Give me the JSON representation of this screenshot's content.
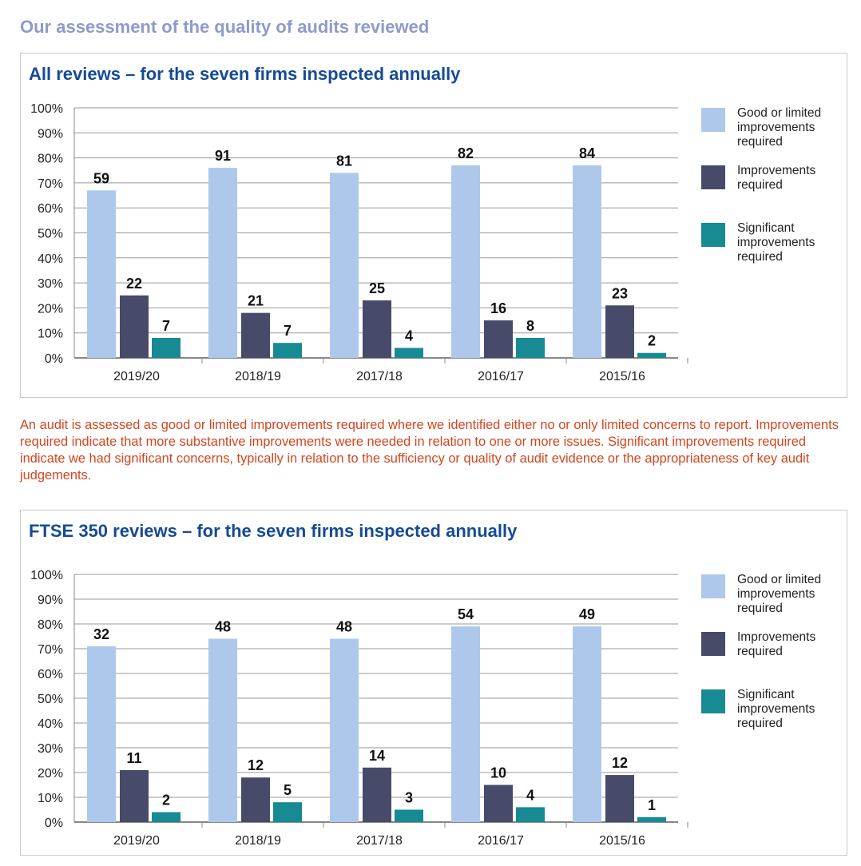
{
  "heading": "Our assessment of the quality of audits reviewed",
  "note": "An audit is assessed as good or limited improvements required where we identified either no or only limited concerns to report. Improvements required indicate that more substantive improvements were needed in relation to one or more issues. Significant improvements required indicate we had significant concerns, typically in relation to the sufficiency or quality of audit evidence or the appropriateness of key audit judgements.",
  "chart_data": [
    {
      "type": "bar",
      "title": "All reviews – for the seven firms inspected annually",
      "ylim": [
        0,
        100
      ],
      "yticks": [
        "0%",
        "10%",
        "20%",
        "30%",
        "40%",
        "50%",
        "60%",
        "70%",
        "80%",
        "90%",
        "100%"
      ],
      "grid": true,
      "legend": "right",
      "categories": [
        "2019/20",
        "2018/19",
        "2017/18",
        "2016/17",
        "2015/16"
      ],
      "series": [
        {
          "name": "Good or limited improvements required",
          "color": "#aec8ec",
          "values": [
            67,
            76,
            74,
            77,
            77
          ],
          "labels": [
            59,
            91,
            81,
            82,
            84
          ]
        },
        {
          "name": "Improvements required",
          "color": "#474a68",
          "values": [
            25,
            18,
            23,
            15,
            21
          ],
          "labels": [
            22,
            21,
            25,
            16,
            23
          ]
        },
        {
          "name": "Significant improvements required",
          "color": "#178a94",
          "values": [
            8,
            6,
            4,
            8,
            2
          ],
          "labels": [
            7,
            7,
            4,
            8,
            2
          ]
        }
      ]
    },
    {
      "type": "bar",
      "title": "FTSE 350 reviews – for the seven firms inspected annually",
      "ylim": [
        0,
        100
      ],
      "yticks": [
        "0%",
        "10%",
        "20%",
        "30%",
        "40%",
        "50%",
        "60%",
        "70%",
        "80%",
        "90%",
        "100%"
      ],
      "grid": true,
      "legend": "right",
      "categories": [
        "2019/20",
        "2018/19",
        "2017/18",
        "2016/17",
        "2015/16"
      ],
      "series": [
        {
          "name": "Good or limited improvements required",
          "color": "#aec8ec",
          "values": [
            71,
            74,
            74,
            79,
            79
          ],
          "labels": [
            32,
            48,
            48,
            54,
            49
          ]
        },
        {
          "name": "Improvements required",
          "color": "#474a68",
          "values": [
            21,
            18,
            22,
            15,
            19
          ],
          "labels": [
            11,
            12,
            14,
            10,
            12
          ]
        },
        {
          "name": "Significant improvements required",
          "color": "#178a94",
          "values": [
            4,
            8,
            5,
            6,
            2
          ],
          "labels": [
            2,
            5,
            3,
            4,
            1
          ]
        }
      ]
    }
  ],
  "legend_lines": [
    [
      "Good or limited",
      "improvements",
      "required"
    ],
    [
      "Improvements",
      "required"
    ],
    [
      "Significant",
      "improvements",
      "required"
    ]
  ]
}
